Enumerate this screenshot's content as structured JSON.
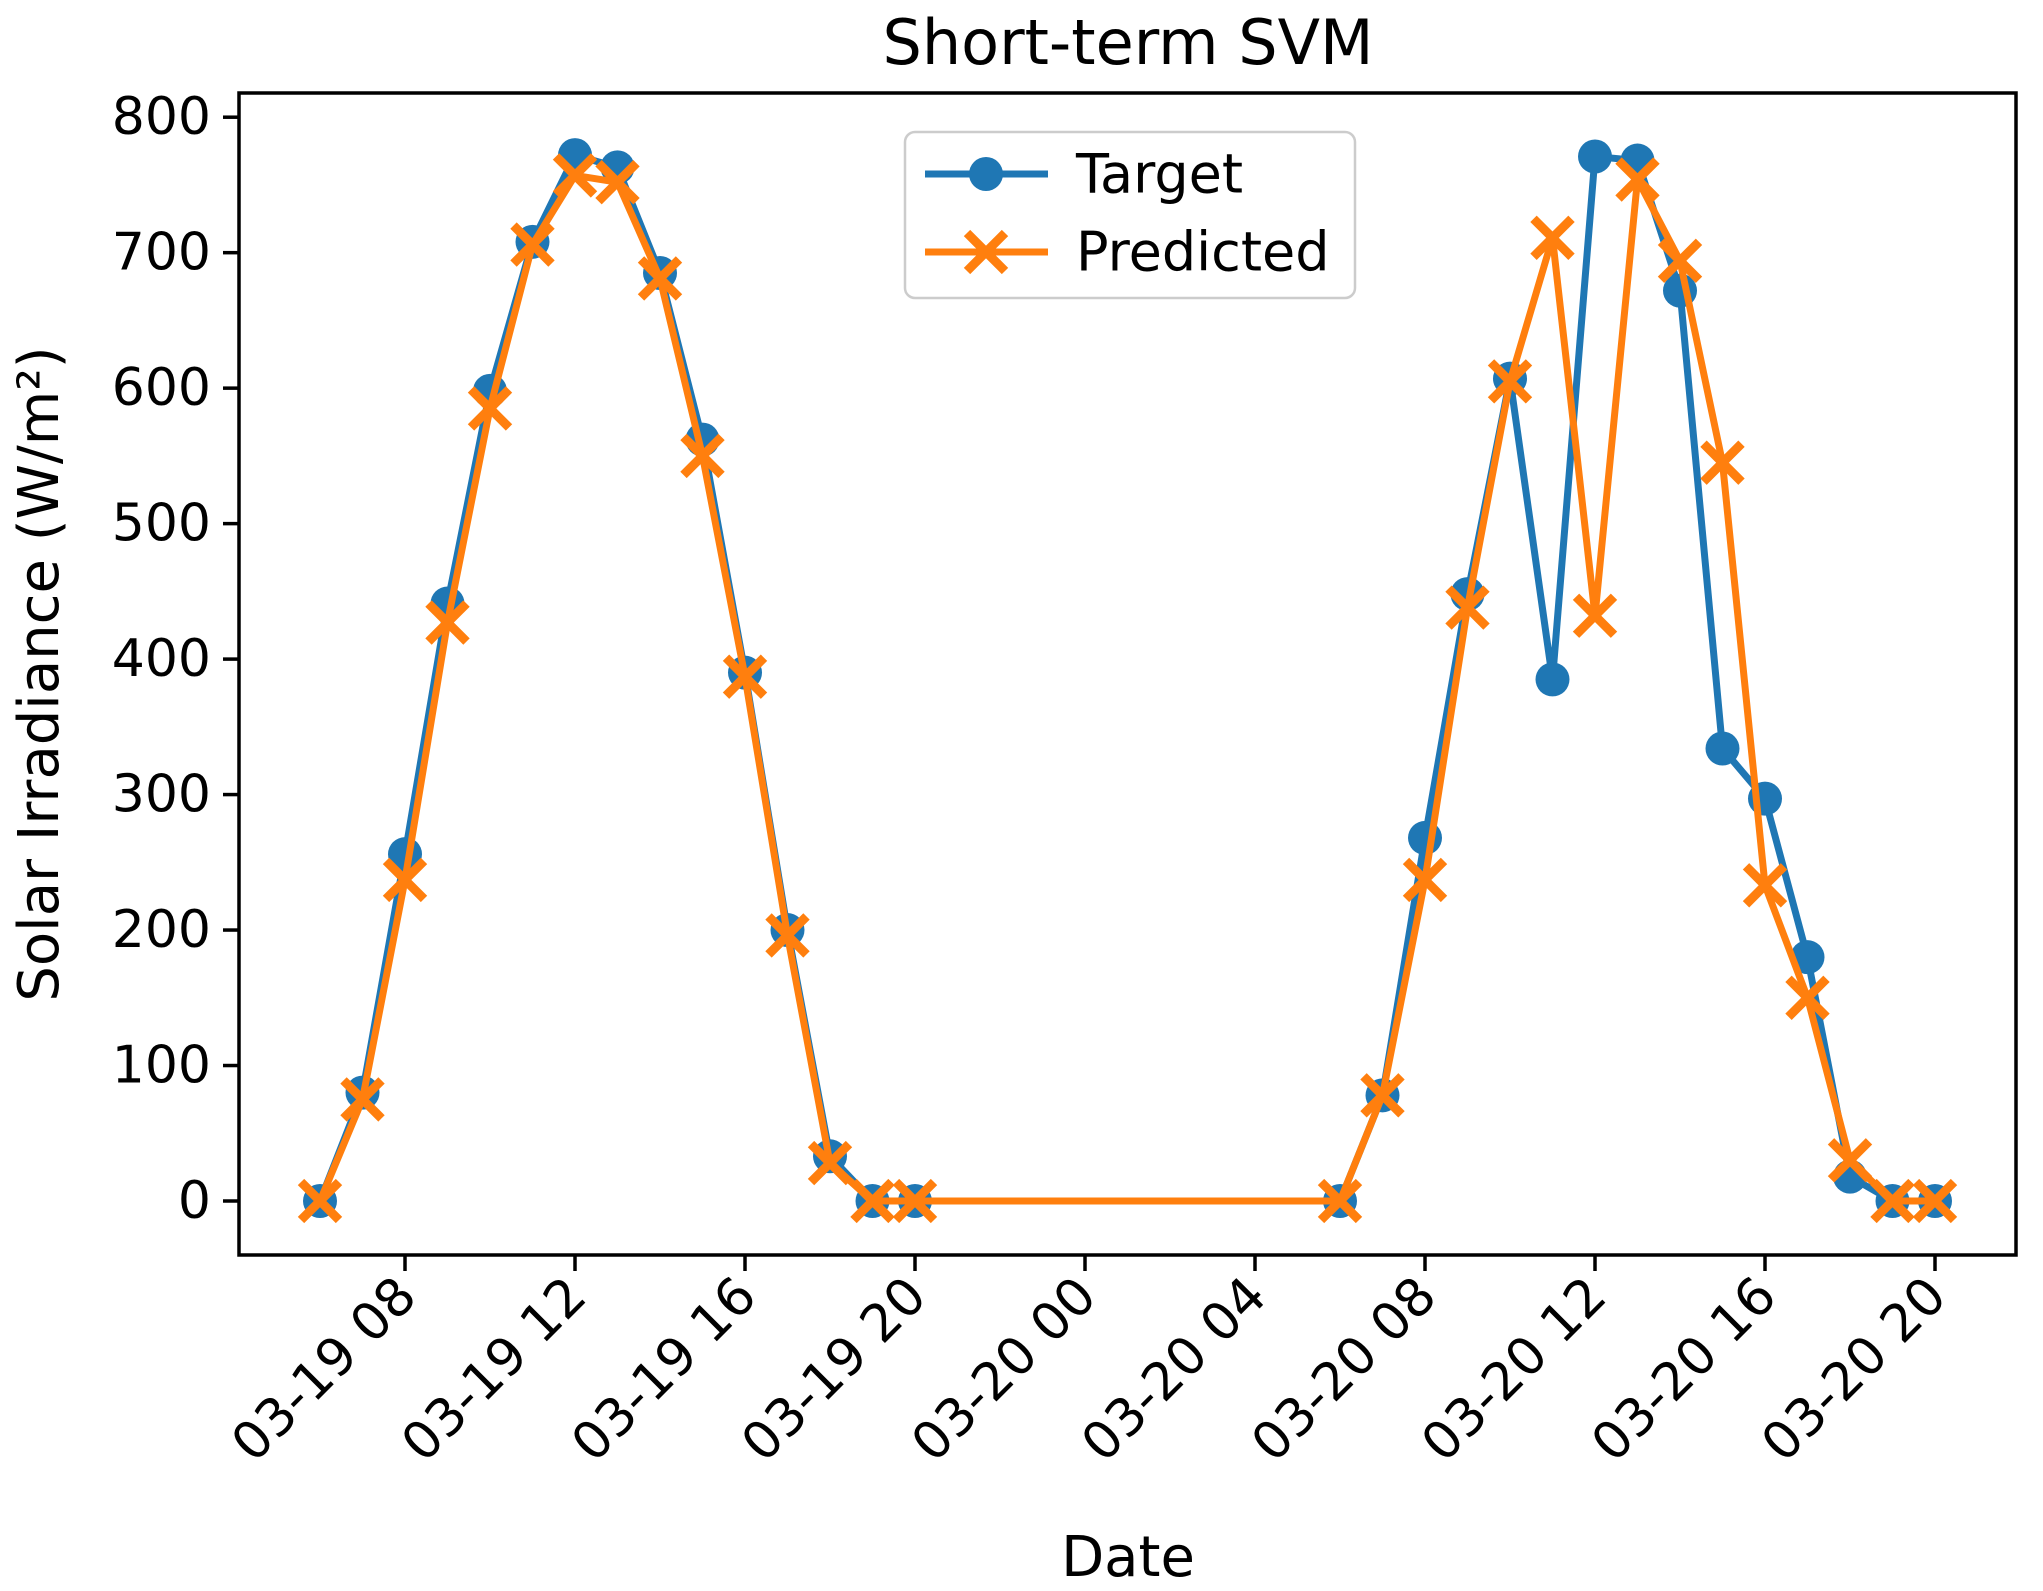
{
  "chart_data": {
    "type": "line",
    "title": "Short-term SVM",
    "xlabel": "Date",
    "ylabel": "Solar Irradiance (W/m²)",
    "grid": false,
    "legend_position": "upper center",
    "ylim": [
      0,
      800
    ],
    "yticks": [
      0,
      100,
      200,
      300,
      400,
      500,
      600,
      700,
      800
    ],
    "xtick_labels": [
      "03-19 08",
      "03-19 12",
      "03-19 16",
      "03-19 20",
      "03-20 00",
      "03-20 04",
      "03-20 08",
      "03-20 12",
      "03-20 16",
      "03-20 20"
    ],
    "x": [
      "03-19 06",
      "03-19 07",
      "03-19 08",
      "03-19 09",
      "03-19 10",
      "03-19 11",
      "03-19 12",
      "03-19 13",
      "03-19 14",
      "03-19 15",
      "03-19 16",
      "03-19 17",
      "03-19 18",
      "03-19 19",
      "03-19 20",
      "03-20 06",
      "03-20 07",
      "03-20 08",
      "03-20 09",
      "03-20 10",
      "03-20 11",
      "03-20 12",
      "03-20 13",
      "03-20 14",
      "03-20 15",
      "03-20 16",
      "03-20 17",
      "03-20 18",
      "03-20 19",
      "03-20 20"
    ],
    "series": [
      {
        "name": "Target",
        "color": "#1f77b4",
        "marker": "circle",
        "values": [
          0,
          80,
          256,
          441,
          598,
          708,
          772,
          763,
          685,
          562,
          390,
          200,
          33,
          0,
          0,
          0,
          78,
          268,
          448,
          607,
          385,
          771,
          768,
          672,
          334,
          297,
          180,
          18,
          0,
          0
        ]
      },
      {
        "name": "Predicted",
        "color": "#ff7f0e",
        "marker": "x",
        "values": [
          0,
          75,
          237,
          427,
          585,
          706,
          757,
          752,
          681,
          550,
          387,
          196,
          28,
          0,
          0,
          0,
          78,
          237,
          438,
          605,
          711,
          432,
          754,
          694,
          545,
          233,
          150,
          30,
          0,
          0
        ]
      }
    ]
  }
}
